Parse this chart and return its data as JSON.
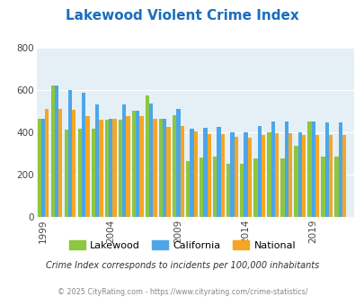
{
  "title": "Lakewood Violent Crime Index",
  "title_color": "#1a6ebd",
  "subtitle": "Crime Index corresponds to incidents per 100,000 inhabitants",
  "footer": "© 2025 CityRating.com - https://www.cityrating.com/crime-statistics/",
  "years": [
    1999,
    2000,
    2001,
    2002,
    2003,
    2004,
    2005,
    2006,
    2007,
    2008,
    2009,
    2010,
    2011,
    2012,
    2013,
    2014,
    2015,
    2016,
    2017,
    2018,
    2019,
    2020,
    2021
  ],
  "lakewood": [
    465,
    620,
    410,
    415,
    415,
    460,
    460,
    500,
    575,
    465,
    480,
    265,
    280,
    285,
    250,
    250,
    275,
    400,
    275,
    335,
    450,
    285,
    285
  ],
  "california": [
    465,
    620,
    600,
    585,
    530,
    465,
    530,
    500,
    535,
    465,
    510,
    415,
    420,
    425,
    400,
    400,
    430,
    450,
    450,
    400,
    450,
    445,
    445
  ],
  "national": [
    510,
    510,
    505,
    475,
    460,
    465,
    475,
    475,
    465,
    425,
    430,
    405,
    390,
    390,
    380,
    375,
    385,
    395,
    395,
    385,
    385,
    385,
    385
  ],
  "bar_colors": {
    "lakewood": "#8dc63f",
    "california": "#4da6e8",
    "national": "#f5a623"
  },
  "bg_color": "#e4f0f6",
  "ylim": [
    0,
    800
  ],
  "yticks": [
    0,
    200,
    400,
    600,
    800
  ],
  "xtick_labels": [
    "1999",
    "2004",
    "2009",
    "2014",
    "2019"
  ],
  "xtick_positions": [
    1999,
    2004,
    2009,
    2014,
    2019
  ],
  "bar_width": 0.28
}
